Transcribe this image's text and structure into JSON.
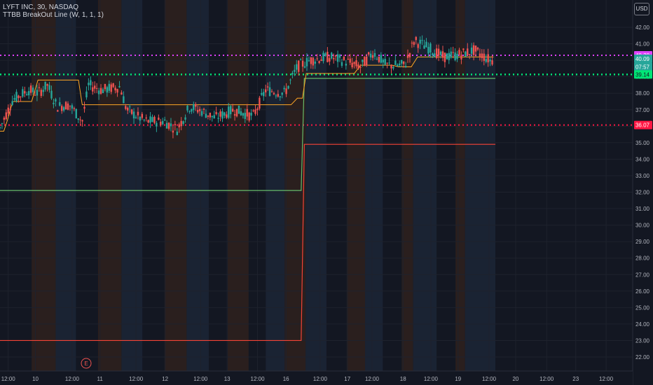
{
  "header": {
    "title": "LYFT INC, 30, NASDAQ",
    "indicator": "TTBB BreakOut Line (W, 1, 1, 1)",
    "currency": "USD",
    "earnings_marker": "E"
  },
  "colors": {
    "background": "#131722",
    "up": "#26a69a",
    "down": "#ef5350",
    "magenta_line": "#e040fb",
    "green_dotted": "#00e676",
    "red_dotted": "#ff1744",
    "breakout_green": "#66bb6a",
    "breakout_red": "#f44336",
    "midline": "#ffa726"
  },
  "chart_data": {
    "type": "candlestick",
    "symbol": "LYFT INC",
    "interval": "30",
    "exchange": "NASDAQ",
    "ylim": [
      21.5,
      42.8
    ],
    "y_ticks": [
      "42.00",
      "41.00",
      "40.00",
      "39.00",
      "38.00",
      "37.00",
      "36.00",
      "35.00",
      "34.00",
      "33.00",
      "32.00",
      "31.00",
      "30.00",
      "29.00",
      "28.00",
      "27.00",
      "26.00",
      "25.00",
      "24.00",
      "23.00",
      "22.00"
    ],
    "x_ticks": [
      {
        "label": "12:00",
        "pos": 0.013
      },
      {
        "label": "10",
        "pos": 0.056
      },
      {
        "label": "12:00",
        "pos": 0.114
      },
      {
        "label": "11",
        "pos": 0.158
      },
      {
        "label": "12:00",
        "pos": 0.215
      },
      {
        "label": "12",
        "pos": 0.261
      },
      {
        "label": "12:00",
        "pos": 0.317
      },
      {
        "label": "13",
        "pos": 0.359
      },
      {
        "label": "12:00",
        "pos": 0.407
      },
      {
        "label": "16",
        "pos": 0.452
      },
      {
        "label": "12:00",
        "pos": 0.506
      },
      {
        "label": "17",
        "pos": 0.549
      },
      {
        "label": "12:00",
        "pos": 0.588
      },
      {
        "label": "18",
        "pos": 0.637
      },
      {
        "label": "12:00",
        "pos": 0.681
      },
      {
        "label": "19",
        "pos": 0.724
      },
      {
        "label": "12:00",
        "pos": 0.773
      },
      {
        "label": "20",
        "pos": 0.815
      },
      {
        "label": "12:00",
        "pos": 0.864
      },
      {
        "label": "23",
        "pos": 0.91
      },
      {
        "label": "12:00",
        "pos": 0.958
      }
    ],
    "horizontal_lines": [
      {
        "name": "magenta-dotted",
        "value": 40.3,
        "label": "40.30",
        "color": "#e040fb",
        "label_color": "#e040fb"
      },
      {
        "name": "price-current",
        "value": 40.09,
        "label": "40.09",
        "color": "#26a69a",
        "label_color": "#26a69a"
      },
      {
        "name": "countdown",
        "value": 39.6,
        "label": "07:57",
        "color": "#26a69a",
        "label_color": "#26a69a"
      },
      {
        "name": "green-dotted",
        "value": 39.14,
        "label": "39.14",
        "color": "#00e676",
        "label_color": "#00e676"
      },
      {
        "name": "red-dotted",
        "value": 36.07,
        "label": "36.07",
        "color": "#ff1744",
        "label_color": "#ff1744"
      }
    ],
    "breakout_green": [
      [
        0,
        32.1
      ],
      [
        0.476,
        32.1
      ],
      [
        0.481,
        38.9
      ],
      [
        0.783,
        38.9
      ]
    ],
    "breakout_red": [
      [
        0,
        23.0
      ],
      [
        0.476,
        23.0
      ],
      [
        0.481,
        34.9
      ],
      [
        0.783,
        34.9
      ]
    ],
    "midline": [
      [
        0,
        35.7
      ],
      [
        0.006,
        35.7
      ],
      [
        0.012,
        36.4
      ],
      [
        0.02,
        37.5
      ],
      [
        0.05,
        37.5
      ],
      [
        0.06,
        38.8
      ],
      [
        0.124,
        38.8
      ],
      [
        0.13,
        37.3
      ],
      [
        0.2,
        37.3
      ],
      [
        0.21,
        37.3
      ],
      [
        0.46,
        37.3
      ],
      [
        0.47,
        37.7
      ],
      [
        0.478,
        37.7
      ],
      [
        0.484,
        39.2
      ],
      [
        0.56,
        39.2
      ],
      [
        0.57,
        39.7
      ],
      [
        0.62,
        39.7
      ],
      [
        0.63,
        39.6
      ],
      [
        0.65,
        39.6
      ],
      [
        0.66,
        40.2
      ],
      [
        0.74,
        40.2
      ],
      [
        0.78,
        40.2
      ]
    ],
    "candles_anchors": [
      [
        0.0,
        35.9
      ],
      [
        0.02,
        37.6
      ],
      [
        0.045,
        38.2
      ],
      [
        0.06,
        38.0
      ],
      [
        0.075,
        38.5
      ],
      [
        0.09,
        37.2
      ],
      [
        0.11,
        37.3
      ],
      [
        0.13,
        36.3
      ],
      [
        0.14,
        38.5
      ],
      [
        0.16,
        38.2
      ],
      [
        0.19,
        38.4
      ],
      [
        0.2,
        37.0
      ],
      [
        0.23,
        36.3
      ],
      [
        0.26,
        36.3
      ],
      [
        0.28,
        35.8
      ],
      [
        0.3,
        37.2
      ],
      [
        0.32,
        36.9
      ],
      [
        0.34,
        36.5
      ],
      [
        0.37,
        37.0
      ],
      [
        0.4,
        36.6
      ],
      [
        0.42,
        38.2
      ],
      [
        0.45,
        38.0
      ],
      [
        0.47,
        39.6
      ],
      [
        0.49,
        40.0
      ],
      [
        0.52,
        40.2
      ],
      [
        0.55,
        39.9
      ],
      [
        0.57,
        39.6
      ],
      [
        0.59,
        40.5
      ],
      [
        0.61,
        39.7
      ],
      [
        0.64,
        39.7
      ],
      [
        0.655,
        41.2
      ],
      [
        0.68,
        40.7
      ],
      [
        0.7,
        40.2
      ],
      [
        0.72,
        40.3
      ],
      [
        0.75,
        40.6
      ],
      [
        0.775,
        40.0
      ]
    ],
    "session_bands": [
      {
        "color": "#2a1f1e",
        "from": 0.05,
        "to": 0.088
      },
      {
        "color": "#1a2333",
        "from": 0.088,
        "to": 0.12
      },
      {
        "color": "#2a1f1e",
        "from": 0.155,
        "to": 0.192
      },
      {
        "color": "#1a2333",
        "from": 0.192,
        "to": 0.225
      },
      {
        "color": "#2a1f1e",
        "from": 0.26,
        "to": 0.295
      },
      {
        "color": "#1a2333",
        "from": 0.295,
        "to": 0.33
      },
      {
        "color": "#2a1f1e",
        "from": 0.36,
        "to": 0.393
      },
      {
        "color": "#1a2333",
        "from": 0.42,
        "to": 0.45
      },
      {
        "color": "#2a1f1e",
        "from": 0.45,
        "to": 0.483
      },
      {
        "color": "#1a2333",
        "from": 0.483,
        "to": 0.516
      },
      {
        "color": "#2a1f1e",
        "from": 0.548,
        "to": 0.577
      },
      {
        "color": "#1a2333",
        "from": 0.577,
        "to": 0.605
      },
      {
        "color": "#2a1f1e",
        "from": 0.635,
        "to": 0.653
      },
      {
        "color": "#1a2333",
        "from": 0.653,
        "to": 0.69
      },
      {
        "color": "#2a1f1e",
        "from": 0.72,
        "to": 0.735
      },
      {
        "color": "#1a2333",
        "from": 0.735,
        "to": 0.783
      }
    ]
  }
}
